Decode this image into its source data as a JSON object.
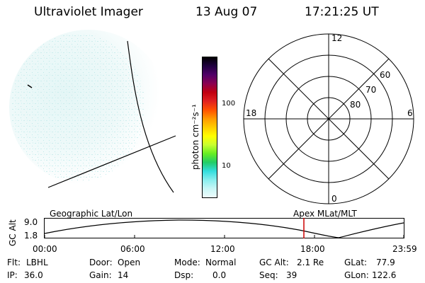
{
  "header": {
    "instrument": "Ultraviolet Imager",
    "date": "13 Aug 07",
    "time": "17:21:25 UT"
  },
  "colorbar": {
    "unit_label": "photon cm⁻²s⁻¹",
    "ticks": [
      "100",
      "10"
    ],
    "colors": [
      "#000000",
      "#200040",
      "#500068",
      "#8a0050",
      "#c00010",
      "#e02020",
      "#ff5000",
      "#ff9900",
      "#ffcc00",
      "#ffff00",
      "#c8ff30",
      "#66ee22",
      "#22cc66",
      "#33dddd",
      "#88eeee",
      "#c8f6f6",
      "#eefcfc"
    ]
  },
  "polar_plot": {
    "mlt_labels": {
      "top": "12",
      "left": "18",
      "right": "6",
      "bottom": "0"
    },
    "lat_labels": [
      "60",
      "70",
      "80"
    ]
  },
  "orbit_plot": {
    "left_label": "Geographic Lat/Lon",
    "right_label": "Apex MLat/MLT",
    "y_axis_label": "GC Alt",
    "y_ticks": [
      "9.0",
      "1.8"
    ],
    "x_ticks": [
      "00:00",
      "06:00",
      "12:00",
      "18:00",
      "23:59"
    ],
    "current_time_color": "#cc0000"
  },
  "status": {
    "flt_label": "Flt:",
    "flt_value": "LBHL",
    "ip_label": "IP:",
    "ip_value": "36.0",
    "door_label": "Door:",
    "door_value": "Open",
    "gain_label": "Gain:",
    "gain_value": "14",
    "mode_label": "Mode:",
    "mode_value": "Normal",
    "dsp_label": "Dsp:",
    "dsp_value": "0.0",
    "gcalt_label": "GC Alt:",
    "gcalt_value": "2.1 Re",
    "seq_label": "Seq:",
    "seq_value": "39",
    "glat_label": "GLat:",
    "glat_value": "77.9",
    "glon_label": "GLon:",
    "glon_value": "122.6"
  }
}
